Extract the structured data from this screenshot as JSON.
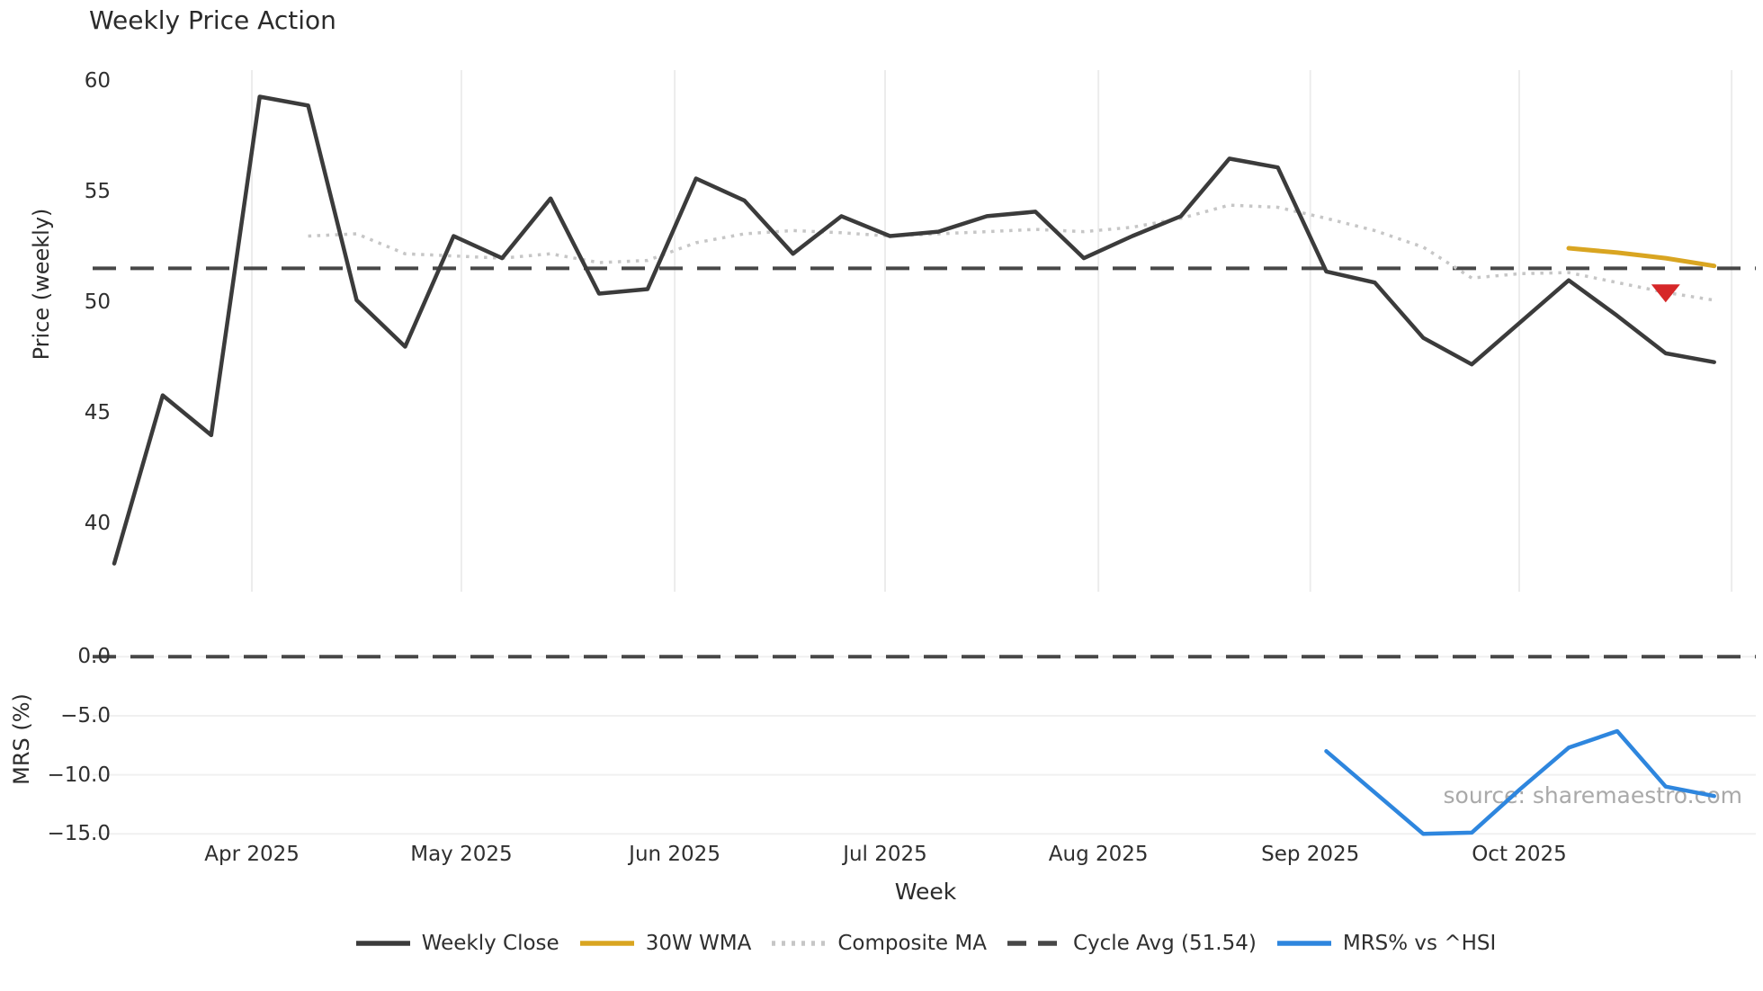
{
  "source": "source: sharemaestro.com",
  "chart_data": {
    "type": "line",
    "title": "Weekly Price Action",
    "xlabel": "Week",
    "x_unit": "week_index",
    "n_weeks": 34,
    "xlim_weeks": [
      -0.45,
      33.9
    ],
    "x_tick_labels": [
      "Apr 2025",
      "May 2025",
      "Jun 2025",
      "Jul 2025",
      "Aug 2025",
      "Sep 2025",
      "Oct 2025"
    ],
    "x_tick_weeks": [
      2.84,
      7.16,
      11.56,
      15.9,
      20.3,
      24.67,
      28.98
    ],
    "unlabeled_gridline_week": 33.36,
    "grid": {
      "top_panel": "vertical-month-lines",
      "bottom_panel": "horizontal-lines",
      "color": "#ececec"
    },
    "panels": [
      {
        "name": "price",
        "ylabel": "Price (weekly)",
        "ytick_labels": [
          "60",
          "55",
          "50",
          "45",
          "40"
        ],
        "ytick_values": [
          60,
          55,
          50,
          45,
          40
        ],
        "ylim": [
          36.9,
          60.5
        ],
        "hline": {
          "legend_label": "Cycle Avg (51.54)",
          "value": 51.54,
          "style": "dashed",
          "color": "#474747"
        },
        "series": [
          {
            "name": "Weekly Close",
            "color": "#3b3b3b",
            "style": "solid",
            "width": 4.5,
            "start_week": 0,
            "values": [
              38.2,
              45.8,
              44.0,
              59.3,
              58.9,
              50.1,
              48.0,
              53.0,
              52.0,
              54.7,
              50.4,
              50.6,
              55.6,
              54.6,
              52.2,
              53.9,
              53.0,
              53.2,
              53.9,
              54.1,
              52.0,
              53.0,
              53.9,
              56.5,
              56.1,
              51.4,
              50.9,
              48.4,
              47.2,
              49.1,
              51.0,
              49.4,
              47.7,
              47.3
            ]
          },
          {
            "name": "30W WMA",
            "color": "#d9a521",
            "style": "solid",
            "width": 5,
            "start_week": 30,
            "values": [
              52.45,
              52.25,
              52.0,
              51.65
            ]
          },
          {
            "name": "Composite MA",
            "color": "#c6c6c6",
            "style": "dotted",
            "width": 3.5,
            "start_week": 4,
            "values": [
              53.0,
              53.1,
              52.2,
              52.1,
              52.0,
              52.2,
              51.8,
              51.9,
              52.7,
              53.1,
              53.25,
              53.15,
              53.0,
              53.1,
              53.2,
              53.3,
              53.2,
              53.4,
              53.8,
              54.4,
              54.3,
              53.8,
              53.25,
              52.5,
              51.1,
              51.3,
              51.35,
              50.9,
              50.45,
              50.1
            ]
          }
        ],
        "marker": {
          "shape": "triangle-down",
          "color": "#d62728",
          "week": 32,
          "value": 50.45
        }
      },
      {
        "name": "mrs",
        "ylabel": "MRS (%)",
        "ytick_labels": [
          "0.0",
          "−5.0",
          "−10.0",
          "−15.0"
        ],
        "ytick_values": [
          0,
          -5,
          -10,
          -15
        ],
        "ylim": [
          -15.97,
          1.39
        ],
        "hline": {
          "value": 0.0,
          "style": "dashed",
          "color": "#474747"
        },
        "series": [
          {
            "name": "MRS% vs ^HSI",
            "color": "#2e86de",
            "style": "solid",
            "width": 4.5,
            "start_week": 25,
            "values": [
              -8.0,
              -11.5,
              -15.0,
              -14.9,
              -11.2,
              -7.7,
              -6.3,
              -11.0,
              -11.8
            ]
          }
        ]
      }
    ],
    "legend": [
      {
        "label": "Weekly Close",
        "color": "#3b3b3b",
        "style": "solid"
      },
      {
        "label": "30W WMA",
        "color": "#d9a521",
        "style": "solid"
      },
      {
        "label": "Composite MA",
        "color": "#c6c6c6",
        "style": "dotted"
      },
      {
        "label": "Cycle Avg (51.54)",
        "color": "#474747",
        "style": "dashed"
      },
      {
        "label": "MRS% vs ^HSI",
        "color": "#2e86de",
        "style": "solid"
      }
    ]
  }
}
